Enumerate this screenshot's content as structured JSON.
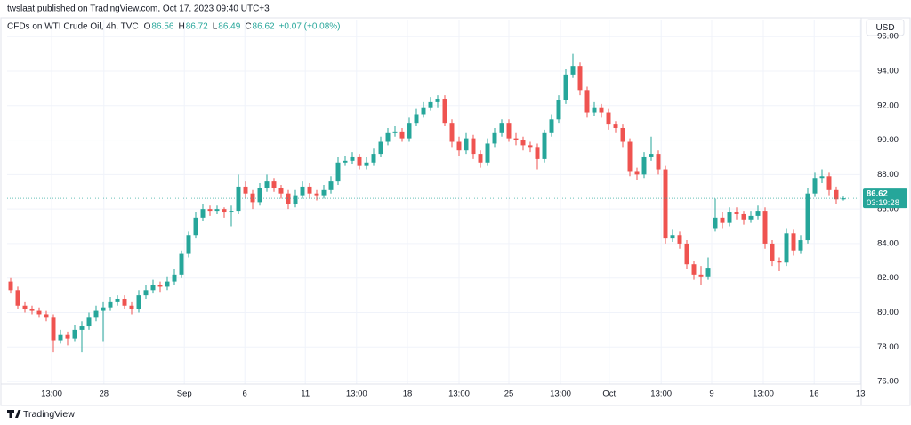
{
  "header": {
    "publisher": "twslaat published on TradingView.com, Oct 17, 2023 09:40 UTC+3",
    "brand": "TradingView"
  },
  "chart_data": {
    "type": "candlestick",
    "title": "CFDs on WTI Crude Oil, 4h, TVC",
    "ohlc_labels": [
      "O",
      "H",
      "L",
      "C"
    ],
    "change": "+0.07 (+0.08%)",
    "currency": "USD",
    "countdown": "03:19:28",
    "up_color": "#26a69a",
    "down_color": "#ef5350",
    "grid": true,
    "xlim": [
      -0.5,
      119.5
    ],
    "ylim": [
      75.85,
      96.99
    ],
    "xticks": [
      {
        "value": 5.75,
        "label": "13:00"
      },
      {
        "value": 13.1,
        "label": "28"
      },
      {
        "value": 24.4,
        "label": "Sep"
      },
      {
        "value": 32.9,
        "label": "6"
      },
      {
        "value": 41.4,
        "label": "11"
      },
      {
        "value": 48.6,
        "label": "13:00"
      },
      {
        "value": 55.75,
        "label": "18"
      },
      {
        "value": 63,
        "label": "13:00"
      },
      {
        "value": 70,
        "label": "25"
      },
      {
        "value": 77.25,
        "label": "13:00"
      },
      {
        "value": 84.1,
        "label": "Oct"
      },
      {
        "value": 91.4,
        "label": "13:00"
      },
      {
        "value": 98.5,
        "label": "9"
      },
      {
        "value": 105.75,
        "label": "13:00"
      },
      {
        "value": 112.9,
        "label": "16"
      },
      {
        "value": 119.4,
        "label": "13"
      }
    ],
    "yticks": [
      {
        "value": 76,
        "label": "76.00"
      },
      {
        "value": 78,
        "label": "78.00"
      },
      {
        "value": 80,
        "label": "80.00"
      },
      {
        "value": 82,
        "label": "82.00"
      },
      {
        "value": 84,
        "label": "84.00"
      },
      {
        "value": 86,
        "label": "86.00"
      },
      {
        "value": 88,
        "label": "88.00"
      },
      {
        "value": 90,
        "label": "90.00"
      },
      {
        "value": 92,
        "label": "92.00"
      },
      {
        "value": 94,
        "label": "94.00"
      },
      {
        "value": 96,
        "label": "96.00"
      }
    ],
    "open": [
      81.8,
      81.3,
      80.4,
      80.2,
      80.1,
      79.9,
      79.7,
      78.4,
      78.7,
      78.5,
      79.0,
      79.2,
      79.7,
      80.1,
      80.3,
      80.6,
      80.8,
      80.4,
      80.2,
      81.0,
      81.3,
      81.6,
      81.5,
      81.8,
      82.2,
      83.4,
      84.5,
      85.5,
      86.0,
      85.9,
      86.0,
      85.8,
      85.9,
      87.3,
      86.9,
      86.4,
      87.2,
      87.6,
      87.2,
      86.9,
      86.3,
      86.8,
      87.3,
      86.9,
      86.8,
      87.1,
      87.6,
      88.7,
      88.8,
      89.0,
      88.5,
      88.7,
      89.2,
      89.9,
      90.4,
      90.5,
      90.1,
      91.0,
      91.5,
      91.9,
      92.2,
      92.4,
      91.0,
      89.9,
      89.4,
      90.1,
      89.2,
      88.7,
      89.8,
      90.4,
      91.0,
      90.1,
      90.0,
      89.7,
      89.6,
      88.9,
      90.4,
      91.2,
      92.3,
      93.8,
      94.3,
      92.9,
      91.6,
      91.9,
      91.6,
      90.9,
      90.7,
      89.9,
      88.2,
      88.0,
      89.0,
      89.2,
      88.3,
      84.3,
      84.5,
      84.0,
      82.8,
      82.2,
      82.1,
      84.9,
      85.5,
      85.2,
      85.8,
      85.7,
      85.4,
      85.6,
      85.9,
      84.0,
      83.0,
      82.9,
      84.6,
      83.6,
      84.2,
      86.9,
      87.8,
      87.9,
      87.1,
      86.56
    ],
    "high": [
      82.0,
      81.5,
      80.6,
      80.4,
      80.3,
      80.1,
      79.9,
      79.0,
      78.9,
      79.3,
      79.5,
      80.0,
      80.4,
      80.6,
      80.9,
      81.0,
      81.0,
      80.6,
      81.3,
      81.6,
      81.9,
      81.8,
      82.1,
      82.5,
      83.6,
      84.7,
      85.8,
      86.3,
      86.2,
      86.2,
      86.1,
      86.2,
      88.0,
      87.6,
      87.1,
      87.5,
      88.0,
      87.8,
      87.4,
      87.1,
      87.1,
      87.6,
      87.5,
      87.1,
      87.4,
      87.9,
      89.0,
      89.1,
      89.3,
      89.2,
      89.0,
      89.5,
      90.2,
      90.7,
      90.8,
      90.7,
      91.3,
      91.8,
      92.2,
      92.5,
      92.6,
      92.6,
      91.2,
      90.2,
      90.4,
      90.3,
      89.4,
      90.1,
      90.7,
      91.2,
      91.2,
      90.4,
      90.2,
      89.9,
      89.8,
      90.6,
      91.5,
      92.6,
      94.1,
      95.0,
      94.5,
      93.1,
      92.2,
      92.1,
      91.8,
      91.1,
      90.9,
      90.1,
      88.4,
      89.3,
      90.2,
      89.4,
      88.5,
      84.8,
      84.7,
      84.2,
      83.0,
      82.7,
      83.2,
      86.6,
      85.8,
      86.1,
      86.1,
      85.9,
      85.9,
      86.2,
      86.1,
      84.2,
      83.2,
      84.9,
      84.8,
      84.5,
      87.2,
      88.1,
      88.3,
      88.1,
      87.3,
      86.72
    ],
    "low": [
      81.1,
      80.2,
      80.0,
      79.9,
      79.7,
      79.5,
      77.7,
      78.2,
      78.1,
      78.3,
      77.7,
      79.0,
      79.5,
      78.3,
      80.1,
      80.4,
      80.2,
      79.9,
      80.0,
      80.8,
      81.1,
      81.2,
      81.3,
      81.6,
      82.0,
      83.2,
      84.3,
      85.3,
      85.6,
      85.7,
      85.5,
      85.0,
      85.7,
      86.6,
      86.0,
      86.2,
      87.0,
      87.0,
      86.6,
      86.0,
      86.1,
      86.6,
      86.6,
      86.5,
      86.6,
      86.9,
      87.4,
      88.5,
      88.6,
      88.3,
      88.3,
      88.5,
      89.0,
      89.7,
      90.2,
      89.9,
      89.9,
      90.8,
      91.3,
      91.7,
      91.9,
      90.8,
      89.6,
      89.1,
      89.2,
      88.9,
      88.4,
      88.5,
      89.6,
      90.2,
      89.9,
      89.7,
      89.4,
      89.3,
      88.3,
      88.7,
      90.2,
      91.0,
      92.1,
      93.6,
      92.6,
      91.3,
      91.4,
      91.3,
      90.6,
      90.4,
      89.6,
      87.9,
      87.7,
      87.8,
      88.8,
      88.0,
      84.0,
      84.1,
      83.7,
      82.5,
      81.9,
      81.6,
      81.9,
      84.7,
      84.9,
      85.0,
      85.4,
      85.1,
      85.2,
      85.4,
      83.7,
      82.7,
      82.4,
      82.7,
      83.3,
      83.4,
      84.0,
      86.7,
      87.5,
      86.8,
      86.3,
      86.49
    ],
    "close": [
      81.3,
      80.4,
      80.2,
      80.1,
      79.9,
      79.7,
      78.4,
      78.7,
      78.5,
      79.0,
      79.2,
      79.7,
      80.1,
      80.3,
      80.6,
      80.8,
      80.4,
      80.2,
      81.0,
      81.3,
      81.6,
      81.5,
      81.8,
      82.2,
      83.4,
      84.5,
      85.5,
      86.0,
      85.9,
      86.0,
      85.8,
      85.9,
      87.3,
      86.9,
      86.4,
      87.2,
      87.6,
      87.2,
      86.9,
      86.3,
      86.8,
      87.3,
      86.9,
      86.8,
      87.1,
      87.6,
      88.7,
      88.8,
      89.0,
      88.5,
      88.7,
      89.2,
      89.9,
      90.4,
      90.5,
      90.1,
      91.0,
      91.5,
      91.9,
      92.2,
      92.4,
      91.0,
      89.9,
      89.4,
      90.1,
      89.2,
      88.7,
      89.8,
      90.4,
      91.0,
      90.1,
      90.0,
      89.7,
      89.6,
      88.9,
      90.4,
      91.2,
      92.3,
      93.8,
      94.3,
      92.9,
      91.6,
      91.9,
      91.6,
      90.9,
      90.7,
      89.9,
      88.2,
      88.0,
      89.0,
      89.2,
      88.3,
      84.3,
      84.5,
      84.0,
      82.8,
      82.2,
      82.1,
      82.6,
      85.5,
      85.2,
      85.8,
      85.7,
      85.4,
      85.6,
      85.9,
      84.0,
      83.0,
      82.9,
      84.6,
      83.6,
      84.2,
      86.9,
      87.8,
      87.9,
      87.1,
      86.56,
      86.62
    ]
  }
}
